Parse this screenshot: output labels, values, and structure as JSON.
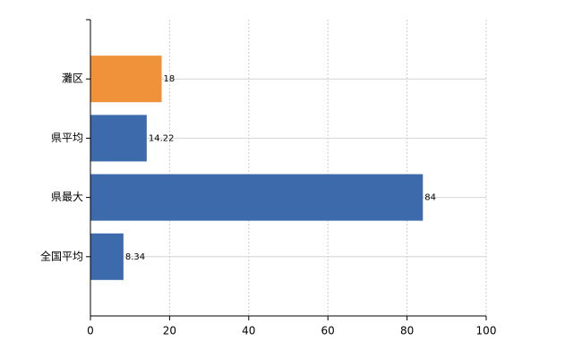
{
  "chart_data": {
    "type": "hbar",
    "categories": [
      "灘区",
      "県平均",
      "県最大",
      "全国平均"
    ],
    "values": [
      18,
      14.22,
      84,
      8.34
    ],
    "colors": [
      "#f0923a",
      "#3d6aab",
      "#3d6aab",
      "#3d6aab"
    ],
    "xlim": [
      0,
      100
    ],
    "xticks": [
      0,
      20,
      40,
      60,
      80,
      100
    ],
    "grid": true
  }
}
